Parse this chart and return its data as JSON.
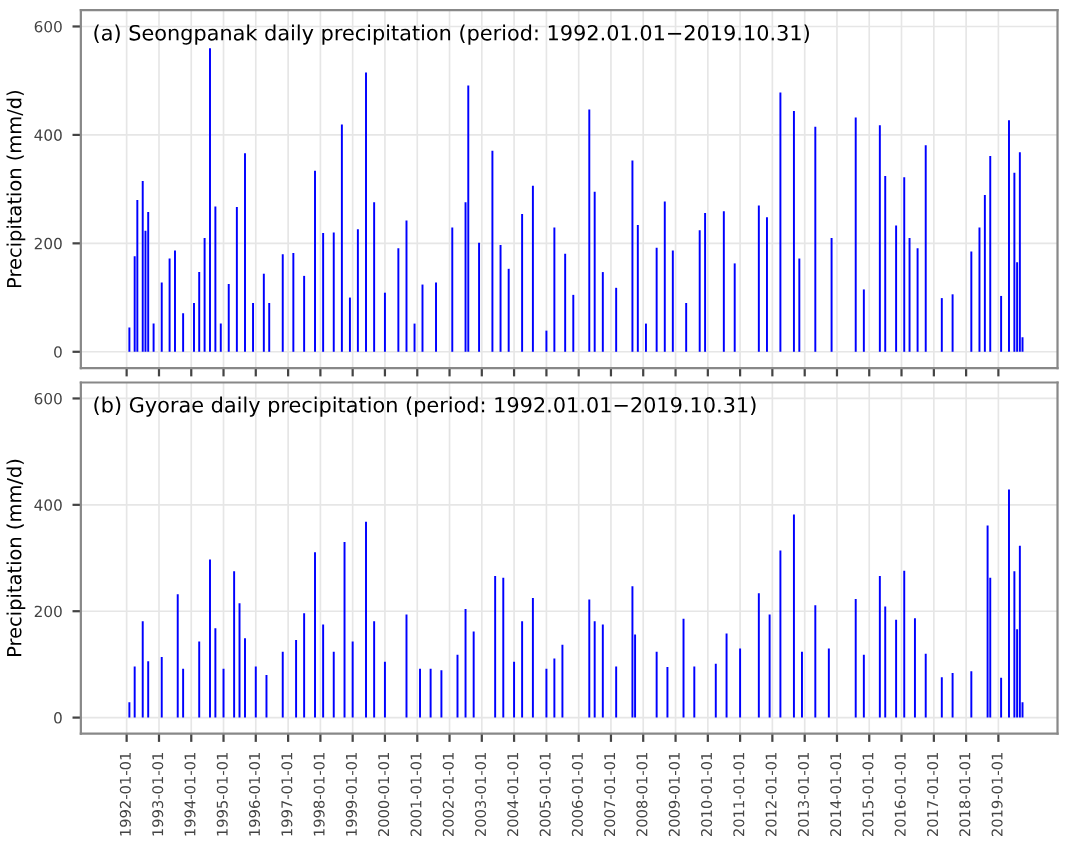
{
  "chart_data": [
    {
      "type": "bar",
      "title": "(a) Seongpanak daily precipitation (period: 1992.01.01−2019.10.31)",
      "ylabel": "Precipitation (mm/d)",
      "color": "#0000ff",
      "grid": true,
      "tick_labels": "y",
      "xlim": [
        "1990-08-01",
        "2020-10-31"
      ],
      "xticks": [
        "1992-01-01",
        "1993-01-01",
        "1994-01-01",
        "1995-01-01",
        "1996-01-01",
        "1997-01-01",
        "1998-01-01",
        "1999-01-01",
        "2000-01-01",
        "2001-01-01",
        "2002-01-01",
        "2003-01-01",
        "2004-01-01",
        "2005-01-01",
        "2006-01-01",
        "2007-01-01",
        "2008-01-01",
        "2009-01-01",
        "2010-01-01",
        "2011-01-01",
        "2012-01-01",
        "2013-01-01",
        "2014-01-01",
        "2015-01-01",
        "2016-01-01",
        "2017-01-01",
        "2018-01-01",
        "2019-01-01"
      ],
      "ylim": [
        -30,
        630
      ],
      "yticks": [
        0,
        200,
        400,
        600
      ],
      "x": [
        "1992-02",
        "1992-04",
        "1992-05",
        "1992-07",
        "1992-08",
        "1992-09",
        "1992-11",
        "1993-02",
        "1993-05",
        "1993-07",
        "1993-10",
        "1994-02",
        "1994-04",
        "1994-06",
        "1994-08",
        "1994-10",
        "1994-12",
        "1995-03",
        "1995-06",
        "1995-09",
        "1995-12",
        "1996-04",
        "1996-06",
        "1996-11",
        "1997-03",
        "1997-07",
        "1997-11",
        "1998-02",
        "1998-06",
        "1998-09",
        "1998-12",
        "1999-03",
        "1999-06",
        "1999-09",
        "2000-01",
        "2000-06",
        "2000-09",
        "2000-12",
        "2001-03",
        "2001-08",
        "2002-02",
        "2002-07",
        "2002-08",
        "2002-12",
        "2003-05",
        "2003-08",
        "2003-11",
        "2004-04",
        "2004-08",
        "2005-01",
        "2005-04",
        "2005-08",
        "2005-11",
        "2006-05",
        "2006-07",
        "2006-10",
        "2007-03",
        "2007-09",
        "2007-11",
        "2008-02",
        "2008-06",
        "2008-09",
        "2008-12",
        "2009-05",
        "2009-10",
        "2009-12",
        "2010-07",
        "2010-11",
        "2011-08",
        "2011-11",
        "2012-04",
        "2012-09",
        "2012-11",
        "2013-05",
        "2013-11",
        "2014-08",
        "2014-11",
        "2015-05",
        "2015-07",
        "2015-11",
        "2016-02",
        "2016-04",
        "2016-07",
        "2016-10",
        "2017-04",
        "2017-08",
        "2018-03",
        "2018-06",
        "2018-08",
        "2018-10",
        "2019-02",
        "2019-05",
        "2019-07",
        "2019-08",
        "2019-09",
        "2019-10"
      ],
      "values": [
        45,
        176,
        280,
        315,
        223,
        258,
        52,
        128,
        172,
        187,
        71,
        90,
        147,
        210,
        560,
        268,
        52,
        125,
        267,
        366,
        90,
        144,
        90,
        180,
        182,
        140,
        334,
        219,
        220,
        419,
        100,
        226,
        515,
        276,
        109,
        191,
        242,
        52,
        124,
        128,
        229,
        276,
        491,
        201,
        371,
        197,
        153,
        254,
        306,
        39,
        229,
        181,
        105,
        447,
        295,
        147,
        118,
        353,
        234,
        52,
        192,
        277,
        187,
        90,
        224,
        256,
        259,
        163,
        270,
        248,
        478,
        444,
        172,
        415,
        210,
        432,
        115,
        418,
        324,
        233,
        322,
        210,
        191,
        381,
        99,
        106,
        185,
        229,
        289,
        361,
        103,
        427,
        330,
        165,
        368,
        27
      ]
    },
    {
      "type": "bar",
      "title": "(b) Gyorae daily precipitation (period: 1992.01.01−2019.10.31)",
      "ylabel": "Precipitation (mm/d)",
      "color": "#0000ff",
      "grid": true,
      "xlim": [
        "1990-08-01",
        "2020-10-31"
      ],
      "xticks": [
        "1992-01-01",
        "1993-01-01",
        "1994-01-01",
        "1995-01-01",
        "1996-01-01",
        "1997-01-01",
        "1998-01-01",
        "1999-01-01",
        "2000-01-01",
        "2001-01-01",
        "2002-01-01",
        "2003-01-01",
        "2004-01-01",
        "2005-01-01",
        "2006-01-01",
        "2007-01-01",
        "2008-01-01",
        "2009-01-01",
        "2010-01-01",
        "2011-01-01",
        "2012-01-01",
        "2013-01-01",
        "2014-01-01",
        "2015-01-01",
        "2016-01-01",
        "2017-01-01",
        "2018-01-01",
        "2019-01-01"
      ],
      "ylim": [
        -30,
        630
      ],
      "yticks": [
        0,
        200,
        400,
        600
      ],
      "x": [
        "1992-02",
        "1992-04",
        "1992-07",
        "1992-09",
        "1993-02",
        "1993-08",
        "1993-10",
        "1994-04",
        "1994-08",
        "1994-10",
        "1995-01",
        "1995-05",
        "1995-07",
        "1995-09",
        "1996-01",
        "1996-05",
        "1996-11",
        "1997-04",
        "1997-07",
        "1997-11",
        "1998-02",
        "1998-06",
        "1998-10",
        "1999-01",
        "1999-06",
        "1999-09",
        "2000-01",
        "2000-09",
        "2001-02",
        "2001-06",
        "2001-10",
        "2002-04",
        "2002-07",
        "2002-10",
        "2003-06",
        "2003-09",
        "2004-01",
        "2004-04",
        "2004-08",
        "2005-01",
        "2005-04",
        "2005-07",
        "2006-05",
        "2006-07",
        "2006-10",
        "2007-03",
        "2007-09",
        "2007-10",
        "2008-06",
        "2008-10",
        "2009-04",
        "2009-08",
        "2010-04",
        "2010-08",
        "2011-01",
        "2011-08",
        "2011-12",
        "2012-04",
        "2012-09",
        "2012-12",
        "2013-05",
        "2013-10",
        "2014-08",
        "2014-11",
        "2015-05",
        "2015-07",
        "2015-11",
        "2016-02",
        "2016-06",
        "2016-10",
        "2017-04",
        "2017-08",
        "2018-03",
        "2018-09",
        "2018-10",
        "2019-02",
        "2019-05",
        "2019-07",
        "2019-08",
        "2019-09",
        "2019-10"
      ],
      "values": [
        29,
        96,
        181,
        106,
        114,
        232,
        92,
        143,
        297,
        168,
        92,
        275,
        215,
        149,
        96,
        80,
        124,
        146,
        196,
        311,
        175,
        124,
        330,
        143,
        368,
        181,
        105,
        194,
        92,
        92,
        89,
        118,
        204,
        162,
        266,
        263,
        105,
        181,
        225,
        92,
        111,
        137,
        222,
        181,
        175,
        96,
        247,
        156,
        124,
        95,
        186,
        96,
        101,
        158,
        130,
        234,
        194,
        314,
        382,
        124,
        211,
        130,
        223,
        118,
        266,
        209,
        184,
        276,
        187,
        120,
        76,
        84,
        87,
        361,
        263,
        75,
        429,
        275,
        166,
        323,
        29
      ]
    }
  ]
}
